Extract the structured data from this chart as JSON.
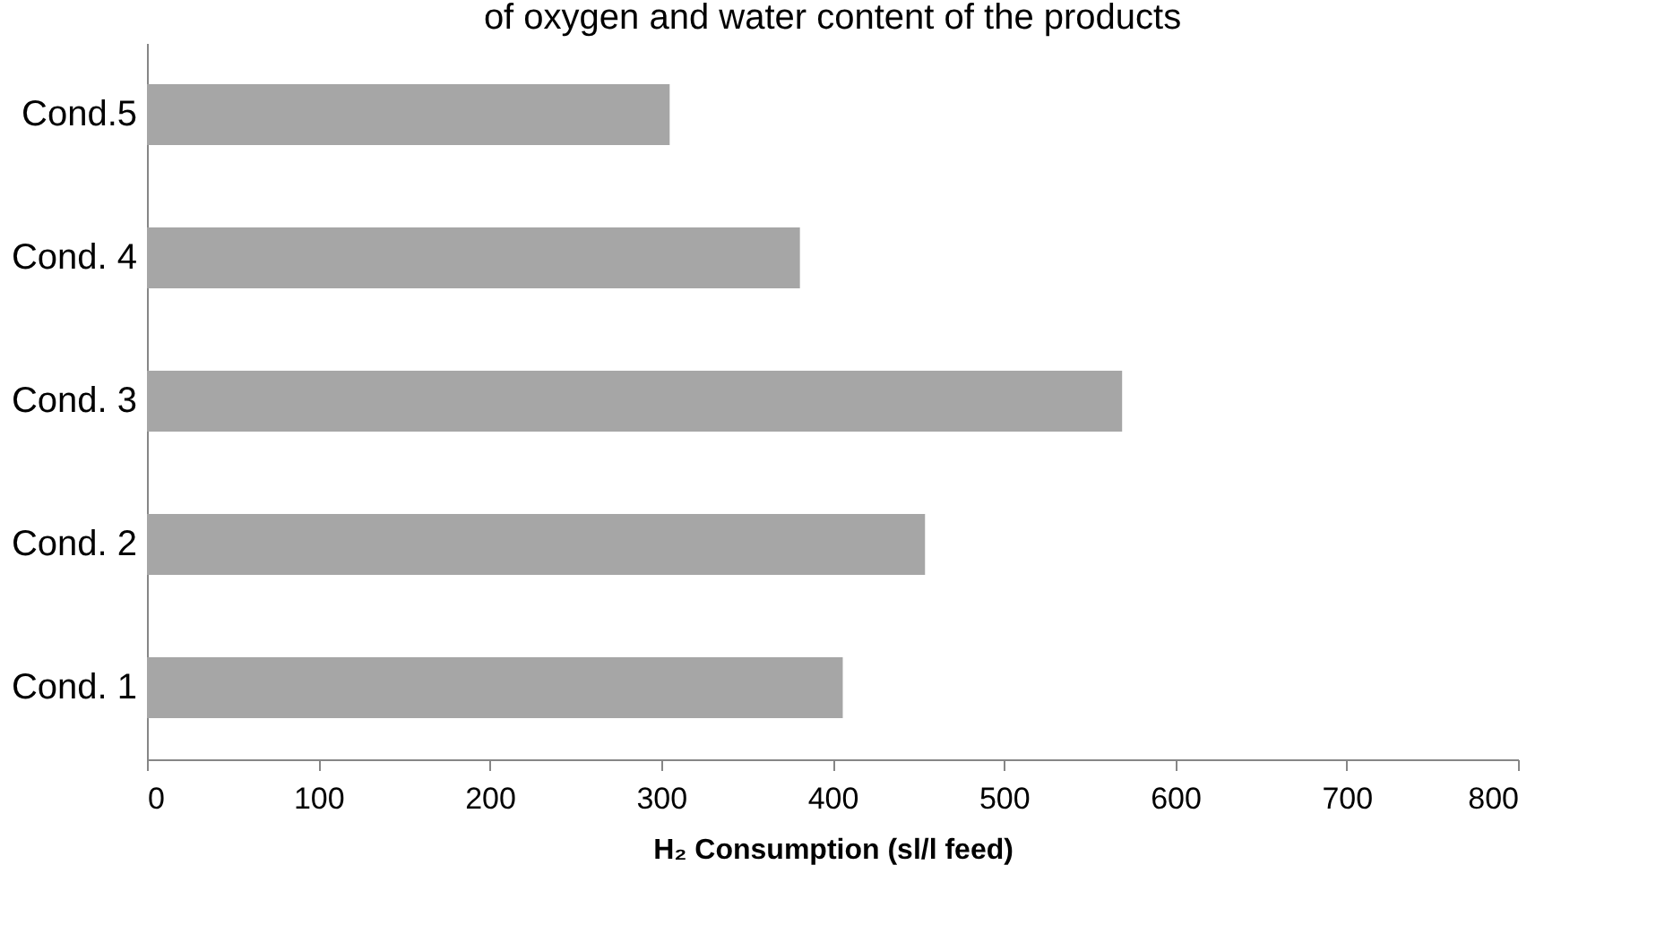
{
  "chart_data": {
    "type": "bar",
    "orientation": "horizontal",
    "title": "of oxygen and water content of the products",
    "categories": [
      "Cond.5",
      "Cond. 4",
      "Cond. 3",
      "Cond. 2",
      "Cond. 1"
    ],
    "values": [
      305,
      381,
      569,
      454,
      406
    ],
    "color": "#a6a6a6",
    "xlim": [
      0,
      800
    ],
    "xticks": [
      0,
      100,
      200,
      300,
      400,
      500,
      600,
      700,
      800
    ],
    "xlabel": "H₂ Consumption (sl/l feed)",
    "grid": false
  }
}
